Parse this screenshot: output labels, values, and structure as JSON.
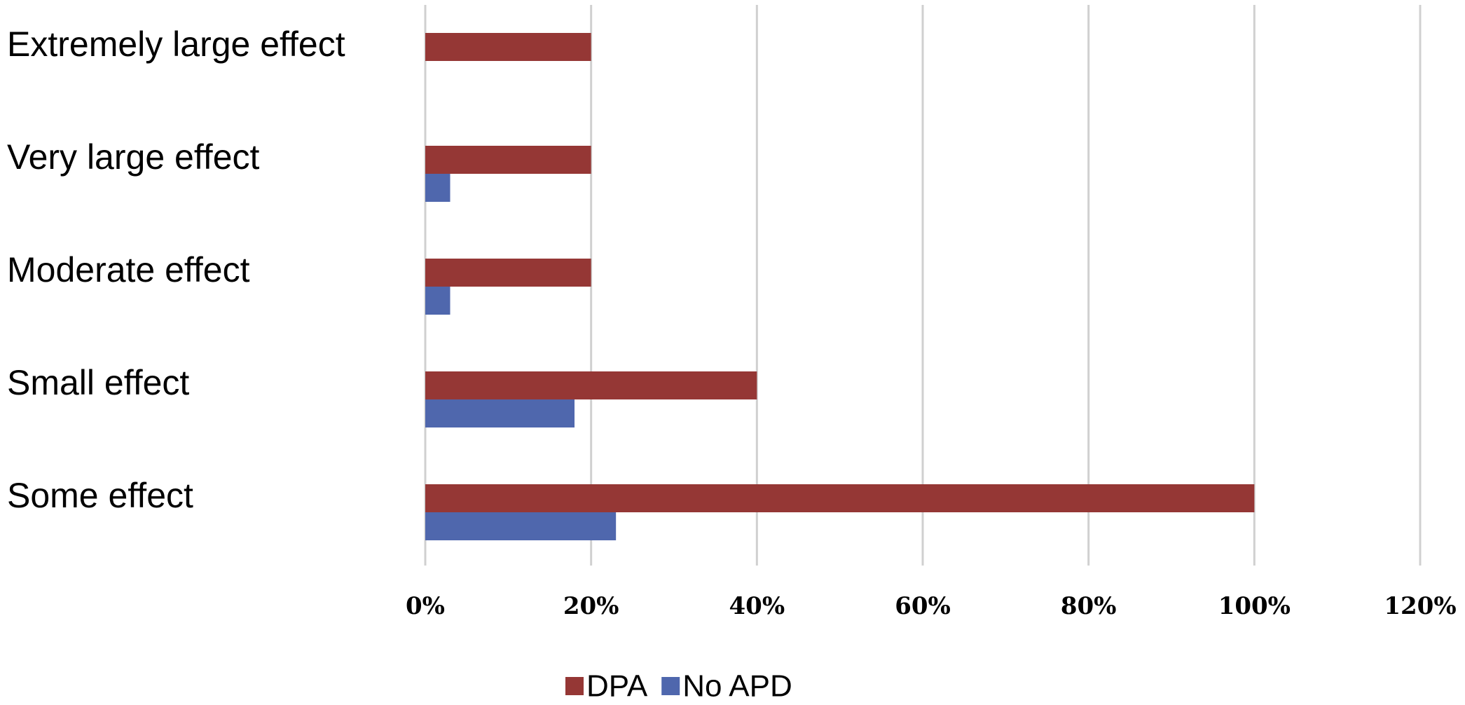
{
  "chart_data": {
    "type": "hbar",
    "categories": [
      "Extremely large effect",
      "Very large effect",
      "Moderate effect",
      "Small effect",
      "Some effect"
    ],
    "series": [
      {
        "name": "DPA",
        "color": "#953735",
        "values": [
          20,
          20,
          20,
          40,
          100
        ]
      },
      {
        "name": "No APD",
        "color": "#4f67ad",
        "values": [
          0,
          3,
          3,
          18,
          23
        ]
      }
    ],
    "xlim": [
      0,
      120
    ],
    "xticks": [
      {
        "value": 0,
        "label": "0%"
      },
      {
        "value": 20,
        "label": "20%"
      },
      {
        "value": 40,
        "label": "40%"
      },
      {
        "value": 60,
        "label": "60%"
      },
      {
        "value": 80,
        "label": "80%"
      },
      {
        "value": 100,
        "label": "100%"
      },
      {
        "value": 120,
        "label": "120%"
      }
    ],
    "grid": true,
    "legend": "bottom"
  }
}
